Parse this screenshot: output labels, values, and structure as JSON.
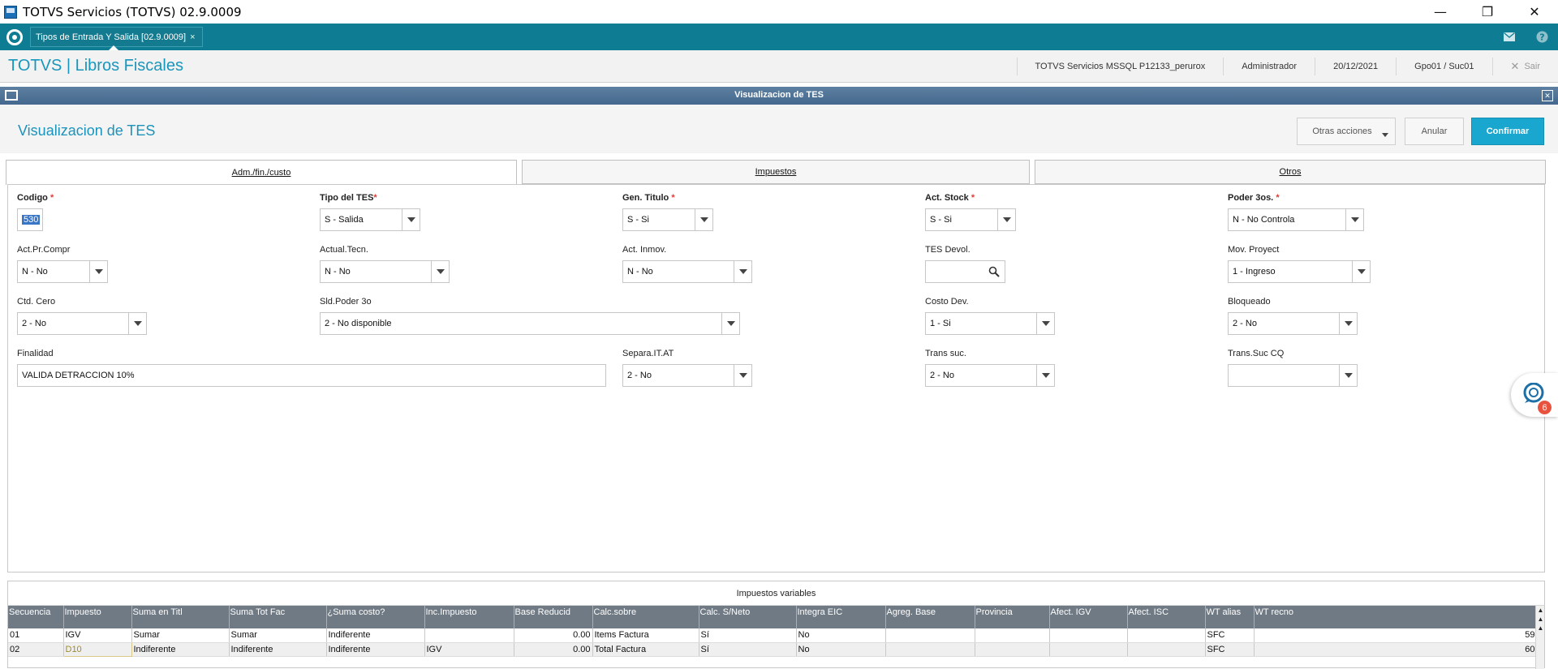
{
  "window": {
    "title": "TOTVS Servicios (TOTVS) 02.9.0009",
    "minimize": "—",
    "restore": "❐",
    "close": "✕"
  },
  "tabs": [
    {
      "label": "Tipos de Entrada Y Salida [02.9.0009]",
      "close": "×"
    }
  ],
  "header": {
    "app_title": "TOTVS | Libros Fiscales",
    "environment": "TOTVS Servicios MSSQL P12133_perurox",
    "user": "Administrador",
    "date": "20/12/2021",
    "branch": "Gpo01 / Suc01",
    "exit": "Sair"
  },
  "dialog": {
    "bar_title": "Visualizacion de TES",
    "page_title": "Visualizacion de TES",
    "buttons": {
      "otras": "Otras acciones",
      "anular": "Anular",
      "confirmar": "Confirmar"
    }
  },
  "folders": {
    "tab1": {
      "text": "Adm./fin./custo"
    },
    "tab2": {
      "text": "Impuestos"
    },
    "tab3": {
      "text": "Otros"
    }
  },
  "form": {
    "codigo": {
      "label": "Codigo",
      "value": "530"
    },
    "tipo_tes": {
      "label": "Tipo del TES",
      "value": "S - Salida"
    },
    "gen_titulo": {
      "label": "Gen. Titulo",
      "value": "S - Si"
    },
    "act_stock": {
      "label": "Act. Stock",
      "value": "S - Si"
    },
    "poder_3os": {
      "label": "Poder 3os.",
      "value": "N - No Controla"
    },
    "act_pr_compr": {
      "label": "Act.Pr.Compr",
      "value": "N - No"
    },
    "actual_tecn": {
      "label": "Actual.Tecn.",
      "value": "N - No"
    },
    "act_inmov": {
      "label": "Act. Inmov.",
      "value": "N - No"
    },
    "tes_devol": {
      "label": "TES Devol.",
      "value": ""
    },
    "mov_proyect": {
      "label": "Mov. Proyect",
      "value": "1 - Ingreso"
    },
    "ctd_cero": {
      "label": "Ctd. Cero",
      "value": "2 - No"
    },
    "sld_poder_3o": {
      "label": "Sld.Poder 3o",
      "value": "2 - No disponible"
    },
    "costo_dev": {
      "label": "Costo Dev.",
      "value": "1 - Si"
    },
    "bloqueado": {
      "label": "Bloqueado",
      "value": "2 - No"
    },
    "finalidad": {
      "label": "Finalidad",
      "value": "VALIDA DETRACCION 10%"
    },
    "separa_it_at": {
      "label": "Separa.IT.AT",
      "value": "2 - No"
    },
    "trans_suc": {
      "label": "Trans suc.",
      "value": "2 - No"
    },
    "trans_suc_cq": {
      "label": "Trans.Suc CQ",
      "value": ""
    }
  },
  "grid": {
    "caption": "Impuestos variables",
    "columns": [
      "Secuencia",
      "Impuesto",
      "Suma en Titl",
      "Suma Tot Fac",
      "¿Suma costo?",
      "Inc.Impuesto",
      "Base Reducid",
      "Calc.sobre",
      "Calc. S/Neto",
      "Integra EIC",
      "Agreg. Base",
      "Provincia",
      "Afect. IGV",
      "Afect. ISC",
      "WT alias",
      "WT recno"
    ],
    "rows": [
      [
        "01",
        "IGV",
        "Sumar",
        "Sumar",
        "Indiferente",
        "",
        "0.00",
        "Items Factura",
        "Sí",
        "No",
        "",
        "",
        "",
        "",
        "SFC",
        "59"
      ],
      [
        "02",
        "D10",
        "Indiferente",
        "Indiferente",
        "Indiferente",
        "IGV",
        "0.00",
        "Total Factura",
        "Sí",
        "No",
        "",
        "",
        "",
        "",
        "SFC",
        "60"
      ]
    ]
  },
  "chat": {
    "badge": "6"
  },
  "colors": {
    "accent": "#1aa7cf",
    "tabstrip": "#0e7d93",
    "grid_header": "#707a84",
    "required": "#e53935"
  }
}
